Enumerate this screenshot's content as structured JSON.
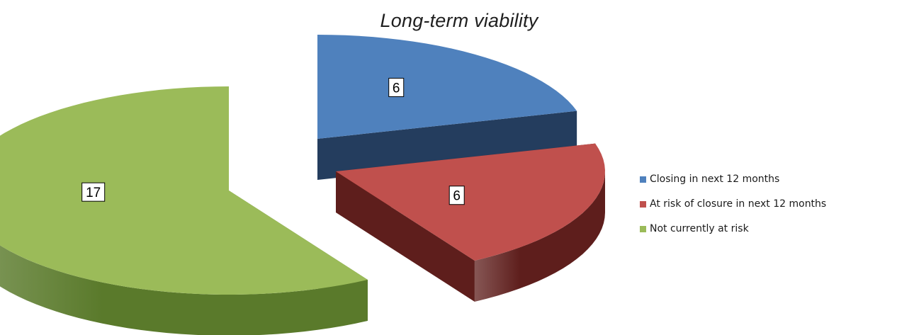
{
  "chart_data": {
    "type": "pie",
    "title": "Long-term viability",
    "categories": [
      "Closing in next 12 months",
      "At risk of closure in next 12 months",
      "Not currently at risk"
    ],
    "values": [
      6,
      6,
      17
    ],
    "colors": {
      "top": [
        "#4f81bd",
        "#c0504d",
        "#9bbb59"
      ],
      "side": [
        "#243d5e",
        "#5e1e1c",
        "#5a7a2b"
      ]
    },
    "style": "3d-exploded",
    "data_labels": [
      "6",
      "6",
      "17"
    ],
    "legend_position": "right"
  }
}
